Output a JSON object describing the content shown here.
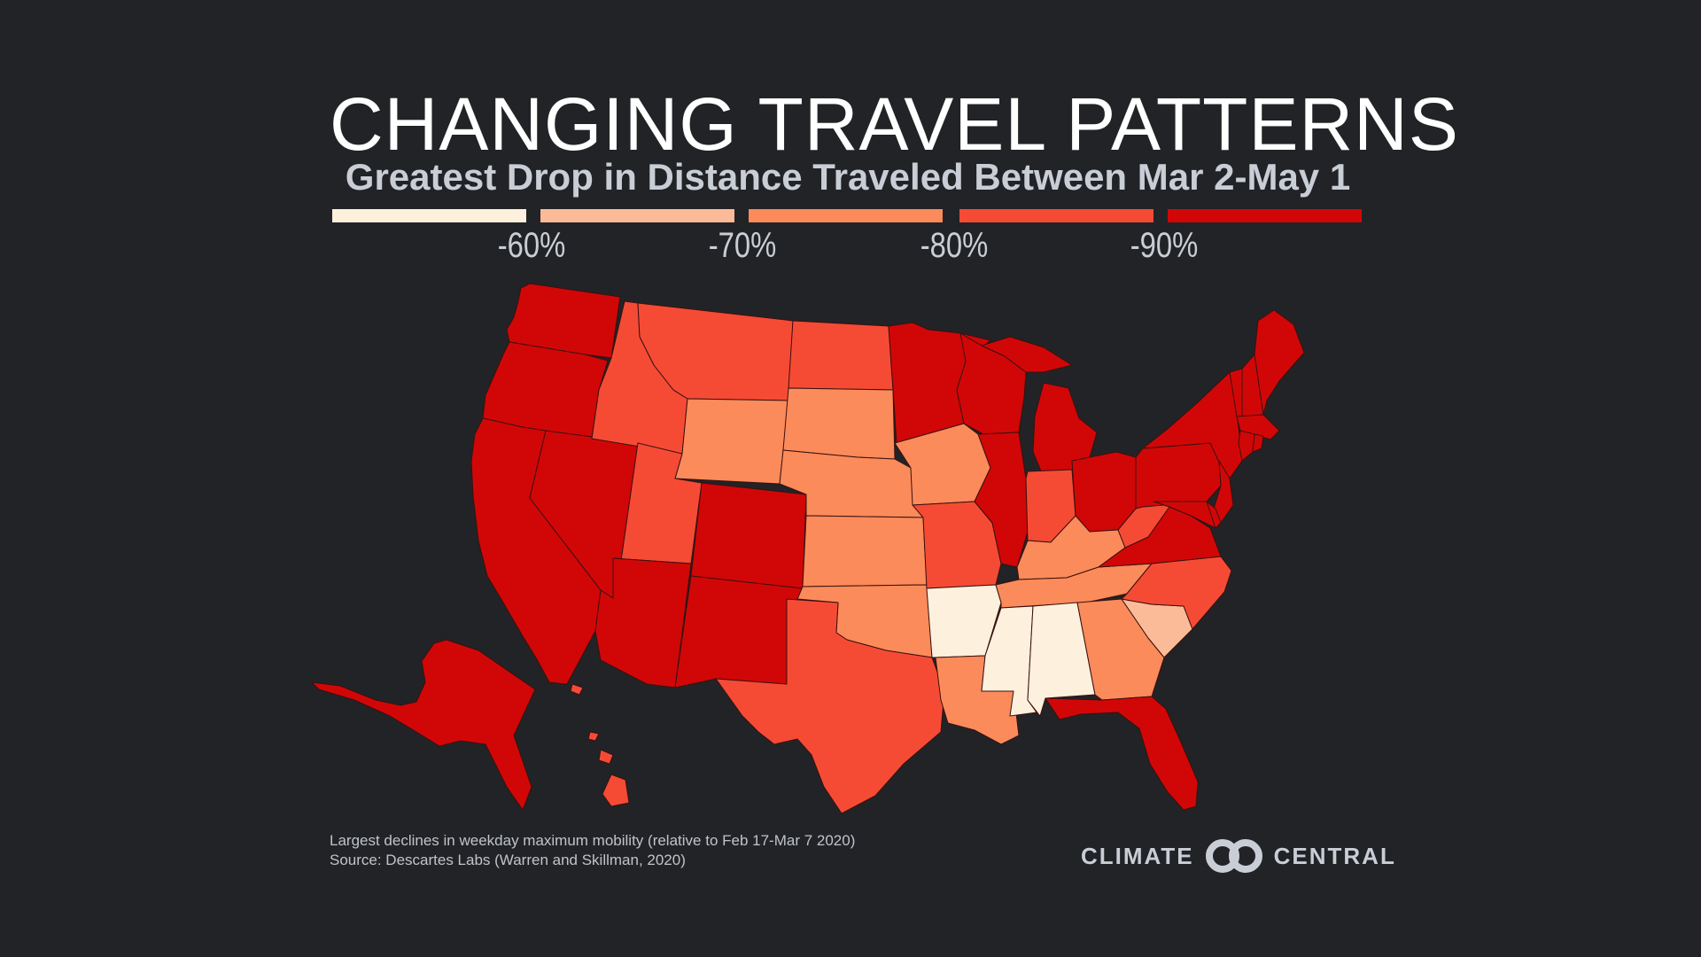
{
  "title": "CHANGING TRAVEL PATTERNS",
  "subtitle": "Greatest Drop in Distance Traveled  Between Mar 2-May 1",
  "legend": {
    "colors": [
      "#fdf0dc",
      "#fcbb98",
      "#fb8b5a",
      "#f54b35",
      "#d10707"
    ],
    "labels": [
      "-60%",
      "-70%",
      "-80%",
      "-90%"
    ]
  },
  "footnote": {
    "line1": "Largest declines in weekday maximum mobility (relative to Feb 17-Mar 7 2020)",
    "line2": "Source: Descartes Labs (Warren and Skillman, 2020)"
  },
  "logo": {
    "left": "CLIMATE",
    "right": "CENTRAL"
  },
  "map_data": {
    "type": "choropleth",
    "region": "United States",
    "states": [
      {
        "state": "Washington",
        "bin": 4
      },
      {
        "state": "Oregon",
        "bin": 4
      },
      {
        "state": "California",
        "bin": 4
      },
      {
        "state": "Nevada",
        "bin": 4
      },
      {
        "state": "Idaho",
        "bin": 3
      },
      {
        "state": "Montana",
        "bin": 3
      },
      {
        "state": "Wyoming",
        "bin": 2
      },
      {
        "state": "Utah",
        "bin": 3
      },
      {
        "state": "Arizona",
        "bin": 4
      },
      {
        "state": "Colorado",
        "bin": 4
      },
      {
        "state": "New Mexico",
        "bin": 4
      },
      {
        "state": "North Dakota",
        "bin": 3
      },
      {
        "state": "South Dakota",
        "bin": 2
      },
      {
        "state": "Nebraska",
        "bin": 2
      },
      {
        "state": "Kansas",
        "bin": 2
      },
      {
        "state": "Oklahoma",
        "bin": 2
      },
      {
        "state": "Texas",
        "bin": 3
      },
      {
        "state": "Minnesota",
        "bin": 4
      },
      {
        "state": "Iowa",
        "bin": 2
      },
      {
        "state": "Missouri",
        "bin": 3
      },
      {
        "state": "Arkansas",
        "bin": 0
      },
      {
        "state": "Louisiana",
        "bin": 2
      },
      {
        "state": "Wisconsin",
        "bin": 4
      },
      {
        "state": "Illinois",
        "bin": 4
      },
      {
        "state": "Michigan",
        "bin": 4
      },
      {
        "state": "Indiana",
        "bin": 3
      },
      {
        "state": "Ohio",
        "bin": 4
      },
      {
        "state": "Kentucky",
        "bin": 2
      },
      {
        "state": "Tennessee",
        "bin": 2
      },
      {
        "state": "Mississippi",
        "bin": 0
      },
      {
        "state": "Alabama",
        "bin": 0
      },
      {
        "state": "Georgia",
        "bin": 2
      },
      {
        "state": "Florida",
        "bin": 4
      },
      {
        "state": "South Carolina",
        "bin": 1
      },
      {
        "state": "North Carolina",
        "bin": 3
      },
      {
        "state": "Virginia",
        "bin": 4
      },
      {
        "state": "West Virginia",
        "bin": 3
      },
      {
        "state": "Pennsylvania",
        "bin": 4
      },
      {
        "state": "New York",
        "bin": 4
      },
      {
        "state": "New Jersey",
        "bin": 4
      },
      {
        "state": "Maryland",
        "bin": 4
      },
      {
        "state": "Delaware",
        "bin": 4
      },
      {
        "state": "Vermont",
        "bin": 4
      },
      {
        "state": "New Hampshire",
        "bin": 4
      },
      {
        "state": "Maine",
        "bin": 4
      },
      {
        "state": "Massachusetts",
        "bin": 4
      },
      {
        "state": "Connecticut",
        "bin": 4
      },
      {
        "state": "Rhode Island",
        "bin": 4
      },
      {
        "state": "Alaska",
        "bin": 4
      },
      {
        "state": "Hawaii",
        "bin": 3
      }
    ]
  }
}
